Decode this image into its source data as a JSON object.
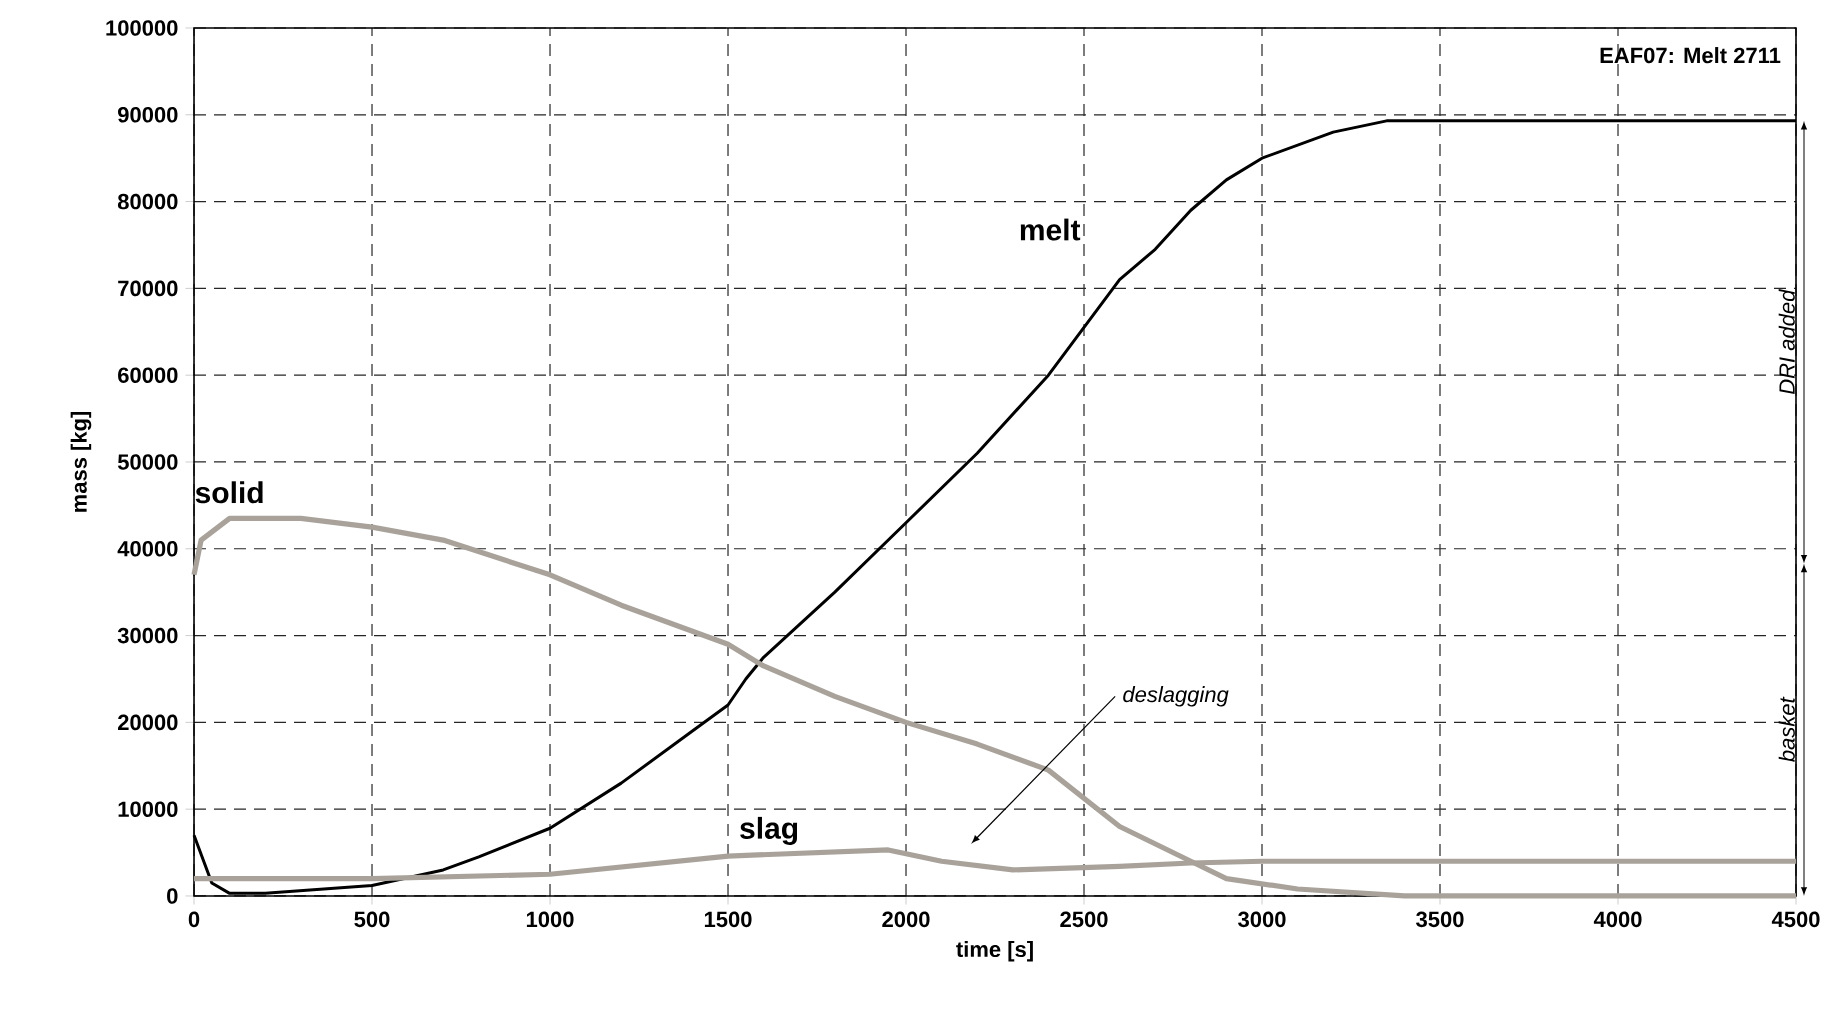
{
  "chart_data": {
    "type": "line",
    "title": "EAF07: Melt 2711",
    "xlabel": "time [s]",
    "ylabel": "mass [kg]",
    "xlim": [
      0,
      4500
    ],
    "xticks": [
      0,
      500,
      1000,
      1500,
      2000,
      2500,
      3000,
      3500,
      4000,
      4500
    ],
    "ylim": [
      0,
      100000
    ],
    "yticks": [
      0,
      10000,
      20000,
      30000,
      40000,
      50000,
      60000,
      70000,
      80000,
      90000,
      100000
    ],
    "grid": true,
    "line_style": "solid",
    "marker": "none",
    "series": [
      {
        "name": "melt",
        "color": "#000000",
        "x": [
          0,
          50,
          100,
          200,
          500,
          700,
          800,
          1000,
          1200,
          1400,
          1500,
          1550,
          1600,
          1800,
          2000,
          2200,
          2400,
          2500,
          2600,
          2700,
          2800,
          2900,
          3000,
          3200,
          3350,
          4500
        ],
        "values": [
          7000,
          1500,
          300,
          300,
          1200,
          3000,
          4500,
          7800,
          13000,
          19000,
          22000,
          25000,
          27500,
          35000,
          43000,
          51000,
          60000,
          65500,
          71000,
          74500,
          79000,
          82500,
          85000,
          88000,
          89300,
          89300
        ]
      },
      {
        "name": "solid",
        "color": "#a8a29a",
        "x": [
          0,
          20,
          100,
          300,
          500,
          700,
          1000,
          1200,
          1400,
          1500,
          1600,
          1800,
          2000,
          2200,
          2400,
          2600,
          2700,
          2800,
          2900,
          3100,
          3400,
          4500
        ],
        "values": [
          37000,
          41000,
          43500,
          43500,
          42500,
          41000,
          37000,
          33500,
          30500,
          29000,
          26500,
          23000,
          20000,
          17500,
          14500,
          8000,
          6000,
          4000,
          2000,
          800,
          0,
          0
        ]
      },
      {
        "name": "slag",
        "color": "#a8a29a",
        "x": [
          0,
          500,
          1000,
          1500,
          1950,
          2100,
          2300,
          2600,
          2800,
          3000,
          4500
        ],
        "values": [
          2000,
          2000,
          2500,
          4600,
          5300,
          4000,
          3000,
          3400,
          3800,
          4000,
          4000
        ]
      }
    ],
    "annotations": [
      "deslagging",
      "DRI added",
      "basket"
    ]
  }
}
